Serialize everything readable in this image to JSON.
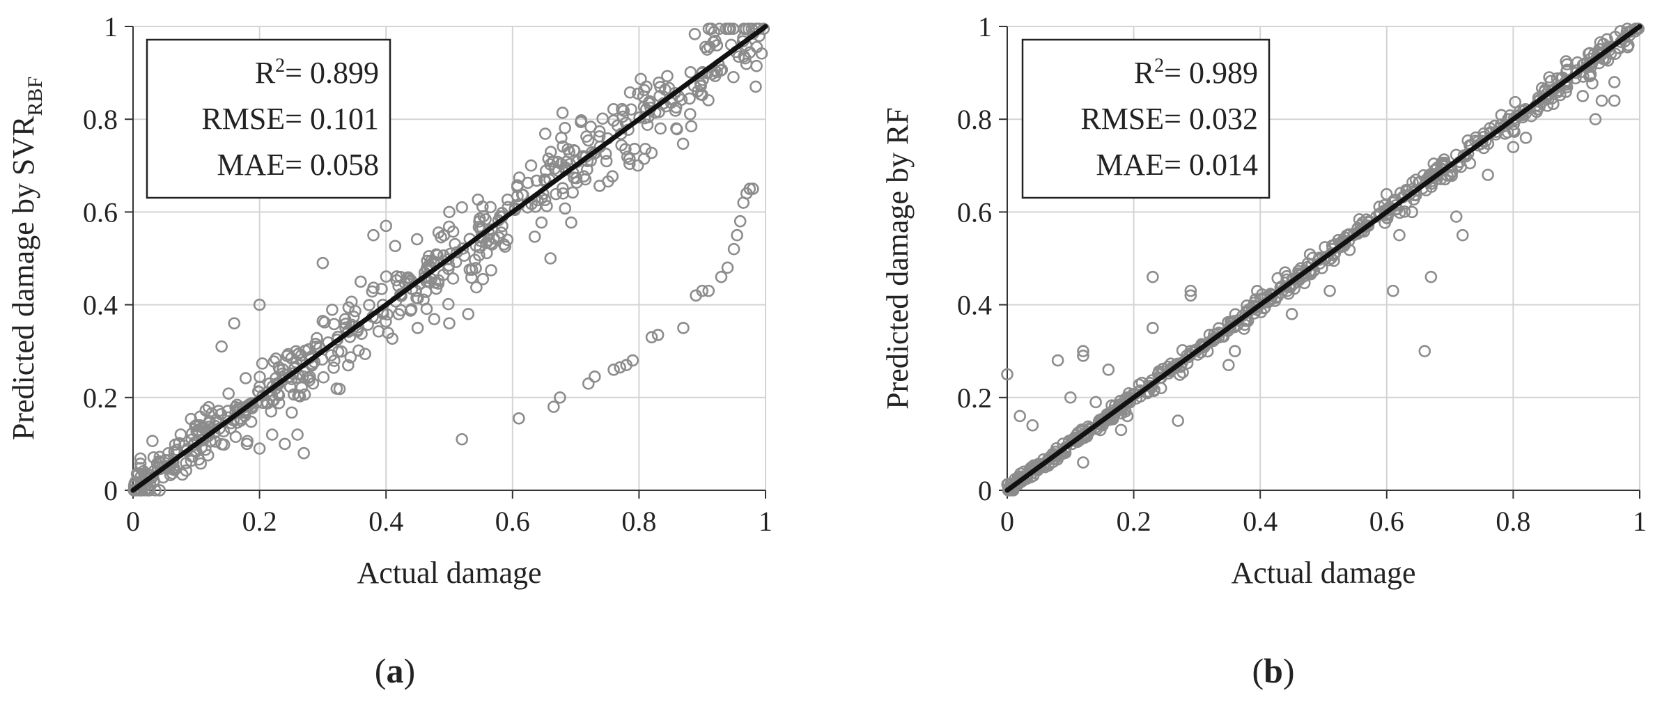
{
  "chart_data": [
    {
      "type": "scatter",
      "panel_label": "(a)",
      "panel_letter": "a",
      "xlabel": "Actual damage",
      "ylabel_main": "Predicted damage by SVR",
      "ylabel_sub": "RBF",
      "xlim": [
        0,
        1
      ],
      "ylim": [
        0,
        1
      ],
      "xticks": [
        "0",
        "0.2",
        "0.4",
        "0.6",
        "0.8",
        "1"
      ],
      "yticks": [
        "0",
        "0.2",
        "0.4",
        "0.6",
        "0.8",
        "1"
      ],
      "grid": true,
      "reference_line": {
        "from": [
          0,
          0
        ],
        "to": [
          1,
          1
        ]
      },
      "stats": {
        "r2_label": "R",
        "r2_sup": "2",
        "r2_value": "= 0.899",
        "rmse_label": "RMSE",
        "rmse_value": "= 0.101",
        "mae_label": "MAE",
        "mae_value": "= 0.058"
      },
      "stats_position": "top-left",
      "marker_color": "#8c8c8c",
      "line_color": "#111111",
      "scatter_model": {
        "spread": 0.055,
        "seed": 17,
        "n": 600
      },
      "outliers": [
        [
          0.52,
          0.11
        ],
        [
          0.61,
          0.155
        ],
        [
          0.665,
          0.18
        ],
        [
          0.675,
          0.2
        ],
        [
          0.72,
          0.23
        ],
        [
          0.73,
          0.245
        ],
        [
          0.76,
          0.26
        ],
        [
          0.77,
          0.265
        ],
        [
          0.78,
          0.27
        ],
        [
          0.79,
          0.28
        ],
        [
          0.82,
          0.33
        ],
        [
          0.83,
          0.335
        ],
        [
          0.87,
          0.35
        ],
        [
          0.89,
          0.42
        ],
        [
          0.9,
          0.43
        ],
        [
          0.91,
          0.43
        ],
        [
          0.93,
          0.46
        ],
        [
          0.94,
          0.48
        ],
        [
          0.95,
          0.52
        ],
        [
          0.955,
          0.55
        ],
        [
          0.96,
          0.58
        ],
        [
          0.965,
          0.62
        ],
        [
          0.97,
          0.64
        ],
        [
          0.975,
          0.65
        ],
        [
          0.98,
          0.65
        ],
        [
          0.52,
          0.61
        ],
        [
          0.5,
          0.6
        ],
        [
          0.3,
          0.49
        ],
        [
          0.4,
          0.57
        ],
        [
          0.38,
          0.55
        ],
        [
          0.16,
          0.36
        ],
        [
          0.2,
          0.4
        ],
        [
          0.14,
          0.31
        ],
        [
          0.27,
          0.08
        ],
        [
          0.24,
          0.1
        ],
        [
          0.22,
          0.12
        ],
        [
          0.2,
          0.09
        ],
        [
          0.18,
          0.1
        ],
        [
          0.26,
          0.12
        ],
        [
          0.45,
          0.35
        ],
        [
          0.5,
          0.36
        ],
        [
          0.66,
          0.5
        ],
        [
          0.53,
          0.38
        ]
      ]
    },
    {
      "type": "scatter",
      "panel_label": "(b)",
      "panel_letter": "b",
      "xlabel": "Actual damage",
      "ylabel_main": "Predicted damage by RF",
      "ylabel_sub": "",
      "xlim": [
        0,
        1
      ],
      "ylim": [
        0,
        1
      ],
      "xticks": [
        "0",
        "0.2",
        "0.4",
        "0.6",
        "0.8",
        "1"
      ],
      "yticks": [
        "0",
        "0.2",
        "0.4",
        "0.6",
        "0.8",
        "1"
      ],
      "grid": true,
      "reference_line": {
        "from": [
          0,
          0
        ],
        "to": [
          1,
          1
        ]
      },
      "stats": {
        "r2_label": "R",
        "r2_sup": "2",
        "r2_value": "= 0.989",
        "rmse_label": "RMSE",
        "rmse_value": "= 0.032",
        "mae_label": "MAE",
        "mae_value": "= 0.014"
      },
      "stats_position": "top-left",
      "marker_color": "#8c8c8c",
      "line_color": "#111111",
      "scatter_model": {
        "spread": 0.015,
        "seed": 41,
        "n": 600
      },
      "outliers": [
        [
          0.0,
          0.25
        ],
        [
          0.23,
          0.46
        ],
        [
          0.29,
          0.42
        ],
        [
          0.29,
          0.43
        ],
        [
          0.66,
          0.3
        ],
        [
          0.61,
          0.43
        ],
        [
          0.67,
          0.46
        ],
        [
          0.62,
          0.55
        ],
        [
          0.64,
          0.6
        ],
        [
          0.71,
          0.59
        ],
        [
          0.72,
          0.55
        ],
        [
          0.12,
          0.3
        ],
        [
          0.12,
          0.29
        ],
        [
          0.16,
          0.26
        ],
        [
          0.23,
          0.35
        ],
        [
          0.27,
          0.15
        ],
        [
          0.08,
          0.28
        ],
        [
          0.02,
          0.16
        ],
        [
          0.51,
          0.43
        ],
        [
          0.96,
          0.84
        ],
        [
          0.93,
          0.8
        ],
        [
          0.76,
          0.68
        ],
        [
          0.82,
          0.76
        ],
        [
          0.96,
          0.88
        ],
        [
          0.91,
          0.85
        ],
        [
          0.94,
          0.84
        ],
        [
          0.35,
          0.27
        ],
        [
          0.36,
          0.3
        ],
        [
          0.45,
          0.38
        ],
        [
          0.06,
          0.05
        ],
        [
          0.12,
          0.06
        ],
        [
          0.7,
          0.68
        ],
        [
          0.8,
          0.74
        ],
        [
          0.04,
          0.14
        ],
        [
          0.1,
          0.2
        ],
        [
          0.14,
          0.19
        ],
        [
          0.18,
          0.13
        ],
        [
          0.19,
          0.16
        ]
      ]
    }
  ]
}
